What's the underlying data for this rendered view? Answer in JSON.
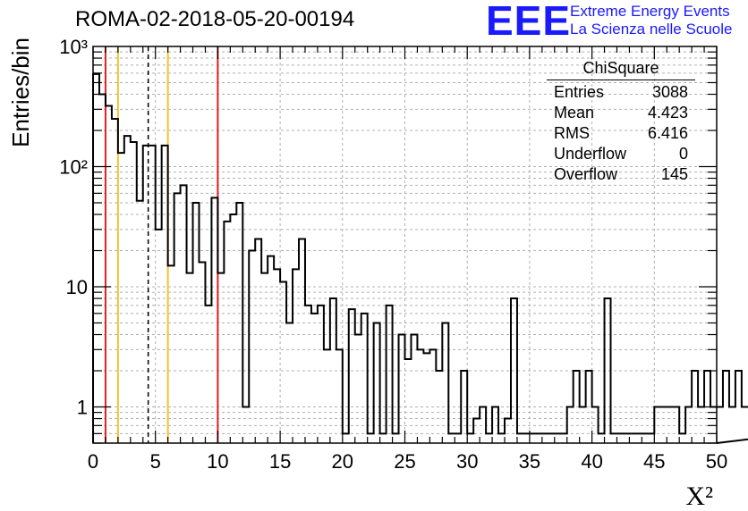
{
  "header": {
    "title": "ROMA-02-2018-05-20-00194",
    "logo_text": "EEE",
    "brand_line1": "Extreme Energy Events",
    "brand_line2": "La Scienza nelle Scuole"
  },
  "stats_box": {
    "title": "ChiSquare",
    "rows": [
      {
        "label": "Entries",
        "value": "3088"
      },
      {
        "label": "Mean",
        "value": "4.423"
      },
      {
        "label": "RMS",
        "value": "6.416"
      },
      {
        "label": "Underflow",
        "value": "0"
      },
      {
        "label": "Overflow",
        "value": "145"
      }
    ]
  },
  "colors": {
    "red_line": "#e0201f",
    "yellow_line": "#f2c230",
    "logo_blue": "#1a1aff"
  },
  "chart_data": {
    "type": "bar",
    "title": "ROMA-02-2018-05-20-00194",
    "xlabel": "X²",
    "ylabel": "Entries/bin",
    "xlim": [
      0,
      50
    ],
    "ylim": [
      0.5,
      1000
    ],
    "y_scale": "log",
    "grid": true,
    "bin_width": 0.5,
    "x_ticks": [
      "0",
      "5",
      "10",
      "15",
      "20",
      "25",
      "30",
      "35",
      "40",
      "45",
      "50"
    ],
    "y_ticks": [
      {
        "value": 1,
        "label": "1"
      },
      {
        "value": 10,
        "label": "10"
      },
      {
        "value": 100,
        "label": "10²"
      },
      {
        "value": 1000,
        "label": "10³"
      }
    ],
    "values": [
      590,
      400,
      320,
      250,
      130,
      180,
      160,
      52,
      150,
      150,
      30,
      150,
      15,
      60,
      70,
      13,
      50,
      16,
      7,
      55,
      13,
      35,
      40,
      50,
      1,
      20,
      25,
      13,
      18,
      14,
      11,
      5,
      14,
      25,
      7,
      6,
      7,
      3,
      8,
      3,
      0.6,
      6.5,
      4,
      6,
      0.6,
      5,
      0.6,
      7,
      0.6,
      4,
      2.5,
      4,
      3,
      2.8,
      3,
      2,
      5,
      0.6,
      0.6,
      2,
      0.6,
      0.8,
      1,
      0.6,
      1,
      0.6,
      0.8,
      8,
      0.6,
      0.6,
      0.6,
      0.6,
      0.6,
      0.6,
      0.6,
      0.6,
      1,
      2,
      1,
      2,
      1,
      0.6,
      8,
      0.6,
      0.6,
      0.6,
      0.6,
      0.6,
      0.6,
      0.6,
      1,
      1,
      1,
      1,
      0.6,
      1,
      2,
      1,
      2,
      1,
      1,
      2,
      1,
      2,
      1,
      1,
      1.5,
      1,
      1,
      0.6,
      2,
      2,
      1,
      2,
      1,
      1,
      1,
      1,
      0.6,
      0.6,
      2.5,
      2,
      1.5,
      2,
      1,
      1,
      1.7,
      1,
      1,
      1,
      0.6,
      1,
      0.6,
      1,
      2,
      1,
      1,
      0.6,
      0.6,
      1,
      1,
      1,
      0.6,
      0.6,
      1,
      1,
      1,
      1
    ],
    "reference_lines": [
      {
        "x": 1,
        "color": "red",
        "style": "solid"
      },
      {
        "x": 2,
        "color": "yellow",
        "style": "solid"
      },
      {
        "x": 4.423,
        "color": "black",
        "style": "dashed"
      },
      {
        "x": 6,
        "color": "yellow",
        "style": "solid"
      },
      {
        "x": 10,
        "color": "red",
        "style": "solid"
      }
    ]
  }
}
